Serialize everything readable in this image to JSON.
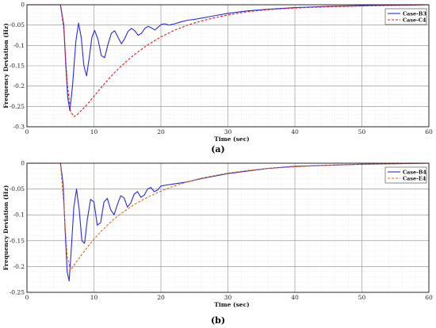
{
  "chart_data": [
    {
      "type": "line",
      "caption": "(a)",
      "xlabel": "Time (sec)",
      "ylabel": "Frequency Deviation (Hz)",
      "xlim": [
        0,
        60
      ],
      "ylim": [
        -0.3,
        0
      ],
      "xticks": [
        0,
        10,
        20,
        30,
        40,
        50,
        60
      ],
      "yticks": [
        0,
        -0.05,
        -0.1,
        -0.15,
        -0.2,
        -0.25,
        -0.3
      ],
      "ytick_labels": [
        "0",
        "-0.05",
        "-0.1",
        "-0.15",
        "-0.2",
        "-0.25",
        "-0.3"
      ],
      "grid": true,
      "legend_position": "top-right",
      "series": [
        {
          "name": "Case-B3",
          "color": "#2b2bd6",
          "style": "solid",
          "x": [
            0,
            5,
            5.5,
            5.8,
            6.1,
            6.4,
            6.8,
            7.3,
            7.7,
            8.1,
            8.5,
            8.9,
            9.3,
            9.7,
            10.1,
            10.6,
            11.1,
            11.6,
            12.1,
            12.6,
            13.1,
            13.6,
            14.1,
            14.6,
            15.1,
            15.6,
            16.1,
            16.6,
            17.1,
            17.6,
            18.1,
            18.6,
            19.1,
            19.6,
            20.1,
            20.6,
            21.2,
            22,
            23,
            24,
            25,
            26,
            28,
            30,
            33,
            36,
            40,
            45,
            50,
            55,
            60
          ],
          "y": [
            0,
            0,
            -0.05,
            -0.15,
            -0.23,
            -0.26,
            -0.2,
            -0.09,
            -0.045,
            -0.08,
            -0.15,
            -0.175,
            -0.13,
            -0.08,
            -0.063,
            -0.085,
            -0.125,
            -0.13,
            -0.097,
            -0.07,
            -0.064,
            -0.08,
            -0.096,
            -0.083,
            -0.065,
            -0.058,
            -0.064,
            -0.075,
            -0.07,
            -0.058,
            -0.053,
            -0.057,
            -0.062,
            -0.055,
            -0.048,
            -0.047,
            -0.05,
            -0.047,
            -0.042,
            -0.038,
            -0.036,
            -0.033,
            -0.027,
            -0.021,
            -0.015,
            -0.011,
            -0.007,
            -0.004,
            -0.002,
            -0.001,
            0
          ]
        },
        {
          "name": "Case-C4",
          "color": "#e21a1a",
          "style": "dashed",
          "x": [
            0,
            5,
            5.5,
            6,
            6.5,
            7,
            7.5,
            8,
            9,
            10,
            11,
            12,
            13,
            14,
            15,
            16,
            18,
            20,
            22,
            24,
            26,
            28,
            30,
            33,
            36,
            40,
            45,
            50,
            55,
            60
          ],
          "y": [
            0,
            0,
            -0.06,
            -0.19,
            -0.262,
            -0.275,
            -0.27,
            -0.262,
            -0.245,
            -0.225,
            -0.205,
            -0.186,
            -0.168,
            -0.152,
            -0.137,
            -0.123,
            -0.099,
            -0.079,
            -0.063,
            -0.05,
            -0.04,
            -0.032,
            -0.025,
            -0.017,
            -0.012,
            -0.008,
            -0.005,
            -0.003,
            -0.0015,
            0
          ]
        }
      ]
    },
    {
      "type": "line",
      "caption": "(b)",
      "xlabel": "Time (sec)",
      "ylabel": "Frequency Deviation (Hz)",
      "xlim": [
        0,
        60
      ],
      "ylim": [
        -0.25,
        0
      ],
      "xticks": [
        0,
        10,
        20,
        30,
        40,
        50,
        60
      ],
      "yticks": [
        0,
        -0.05,
        -0.1,
        -0.15,
        -0.2,
        -0.25
      ],
      "ytick_labels": [
        "0",
        "-0.05",
        "-0.1",
        "-0.15",
        "-0.2",
        "-0.25"
      ],
      "grid": true,
      "legend_position": "top-right",
      "series": [
        {
          "name": "Case-B4",
          "color": "#2b2bd6",
          "style": "solid",
          "x": [
            0,
            5,
            5.4,
            5.7,
            6,
            6.3,
            6.6,
            7,
            7.4,
            7.8,
            8.2,
            8.6,
            9,
            9.5,
            10,
            10.5,
            11,
            11.5,
            12,
            12.5,
            13,
            13.5,
            14,
            14.5,
            15,
            15.5,
            16,
            16.5,
            17,
            17.5,
            18,
            18.5,
            19,
            19.5,
            20,
            21,
            22,
            23,
            24,
            25,
            26,
            28,
            30,
            33,
            36,
            40,
            45,
            50,
            55,
            60
          ],
          "y": [
            0,
            0,
            -0.04,
            -0.13,
            -0.21,
            -0.228,
            -0.17,
            -0.085,
            -0.05,
            -0.09,
            -0.15,
            -0.155,
            -0.11,
            -0.07,
            -0.075,
            -0.12,
            -0.115,
            -0.075,
            -0.068,
            -0.09,
            -0.1,
            -0.08,
            -0.063,
            -0.067,
            -0.085,
            -0.077,
            -0.06,
            -0.055,
            -0.066,
            -0.062,
            -0.05,
            -0.047,
            -0.055,
            -0.052,
            -0.044,
            -0.042,
            -0.04,
            -0.038,
            -0.036,
            -0.033,
            -0.03,
            -0.025,
            -0.02,
            -0.015,
            -0.01,
            -0.006,
            -0.004,
            -0.002,
            -0.001,
            0
          ]
        },
        {
          "name": "Case-E4",
          "color": "#e06a10",
          "style": "dashed",
          "x": [
            0,
            5,
            5.5,
            6,
            6.5,
            7,
            8,
            9,
            10,
            11,
            12,
            13,
            14,
            15,
            16,
            18,
            20,
            22,
            24,
            26,
            28,
            30,
            33,
            36,
            40,
            45,
            50,
            55,
            60
          ],
          "y": [
            0,
            0,
            -0.08,
            -0.18,
            -0.207,
            -0.198,
            -0.18,
            -0.163,
            -0.147,
            -0.133,
            -0.12,
            -0.108,
            -0.098,
            -0.089,
            -0.08,
            -0.066,
            -0.054,
            -0.044,
            -0.036,
            -0.029,
            -0.024,
            -0.019,
            -0.014,
            -0.01,
            -0.007,
            -0.004,
            -0.002,
            -0.001,
            0
          ]
        }
      ]
    }
  ]
}
